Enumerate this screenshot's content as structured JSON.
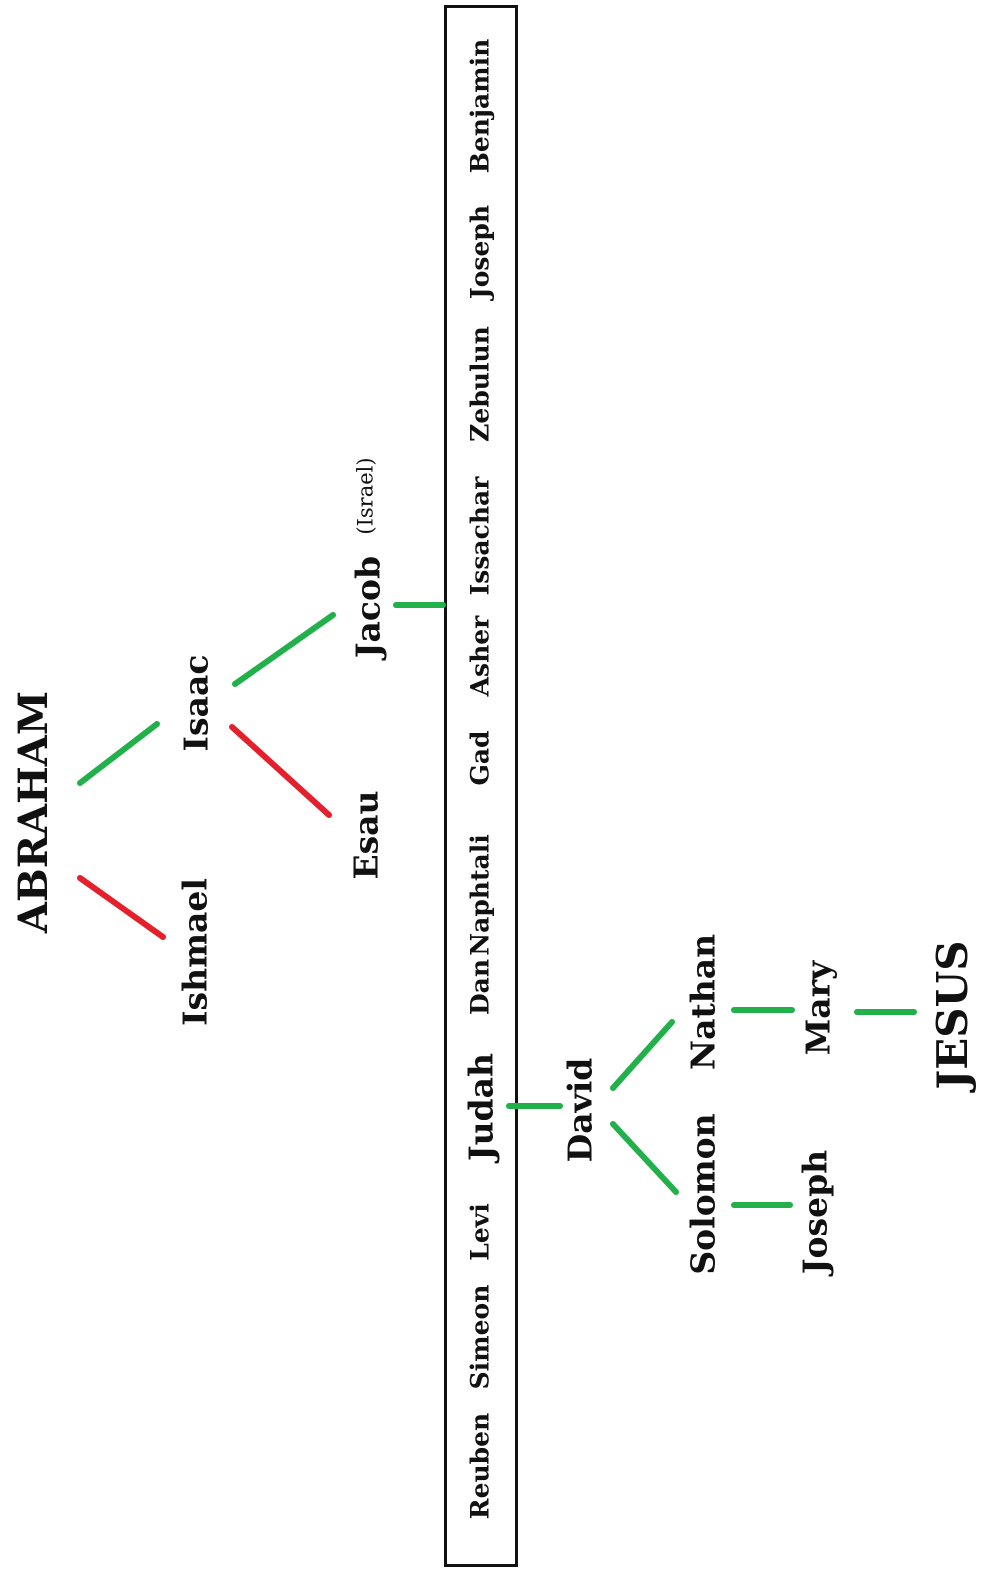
{
  "colors": {
    "lineage": "#22b04a",
    "rejected": "#e3202b",
    "text": "#111111",
    "box": "#111111"
  },
  "names": {
    "abraham": "ABRAHAM",
    "ishmael": "Ishmael",
    "isaac": "Isaac",
    "esau": "Esau",
    "jacob": "Jacob",
    "israel": "(Israel)",
    "david": "David",
    "solomon": "Solomon",
    "nathan": "Nathan",
    "joseph_husband": "Joseph",
    "mary": "Mary",
    "jesus": "JESUS"
  },
  "tribes": [
    "Reuben",
    "Simeon",
    "Levi",
    "Judah",
    "Dan",
    "Naphtali",
    "Gad",
    "Asher",
    "Issachar",
    "Zebulun",
    "Joseph",
    "Benjamin"
  ]
}
